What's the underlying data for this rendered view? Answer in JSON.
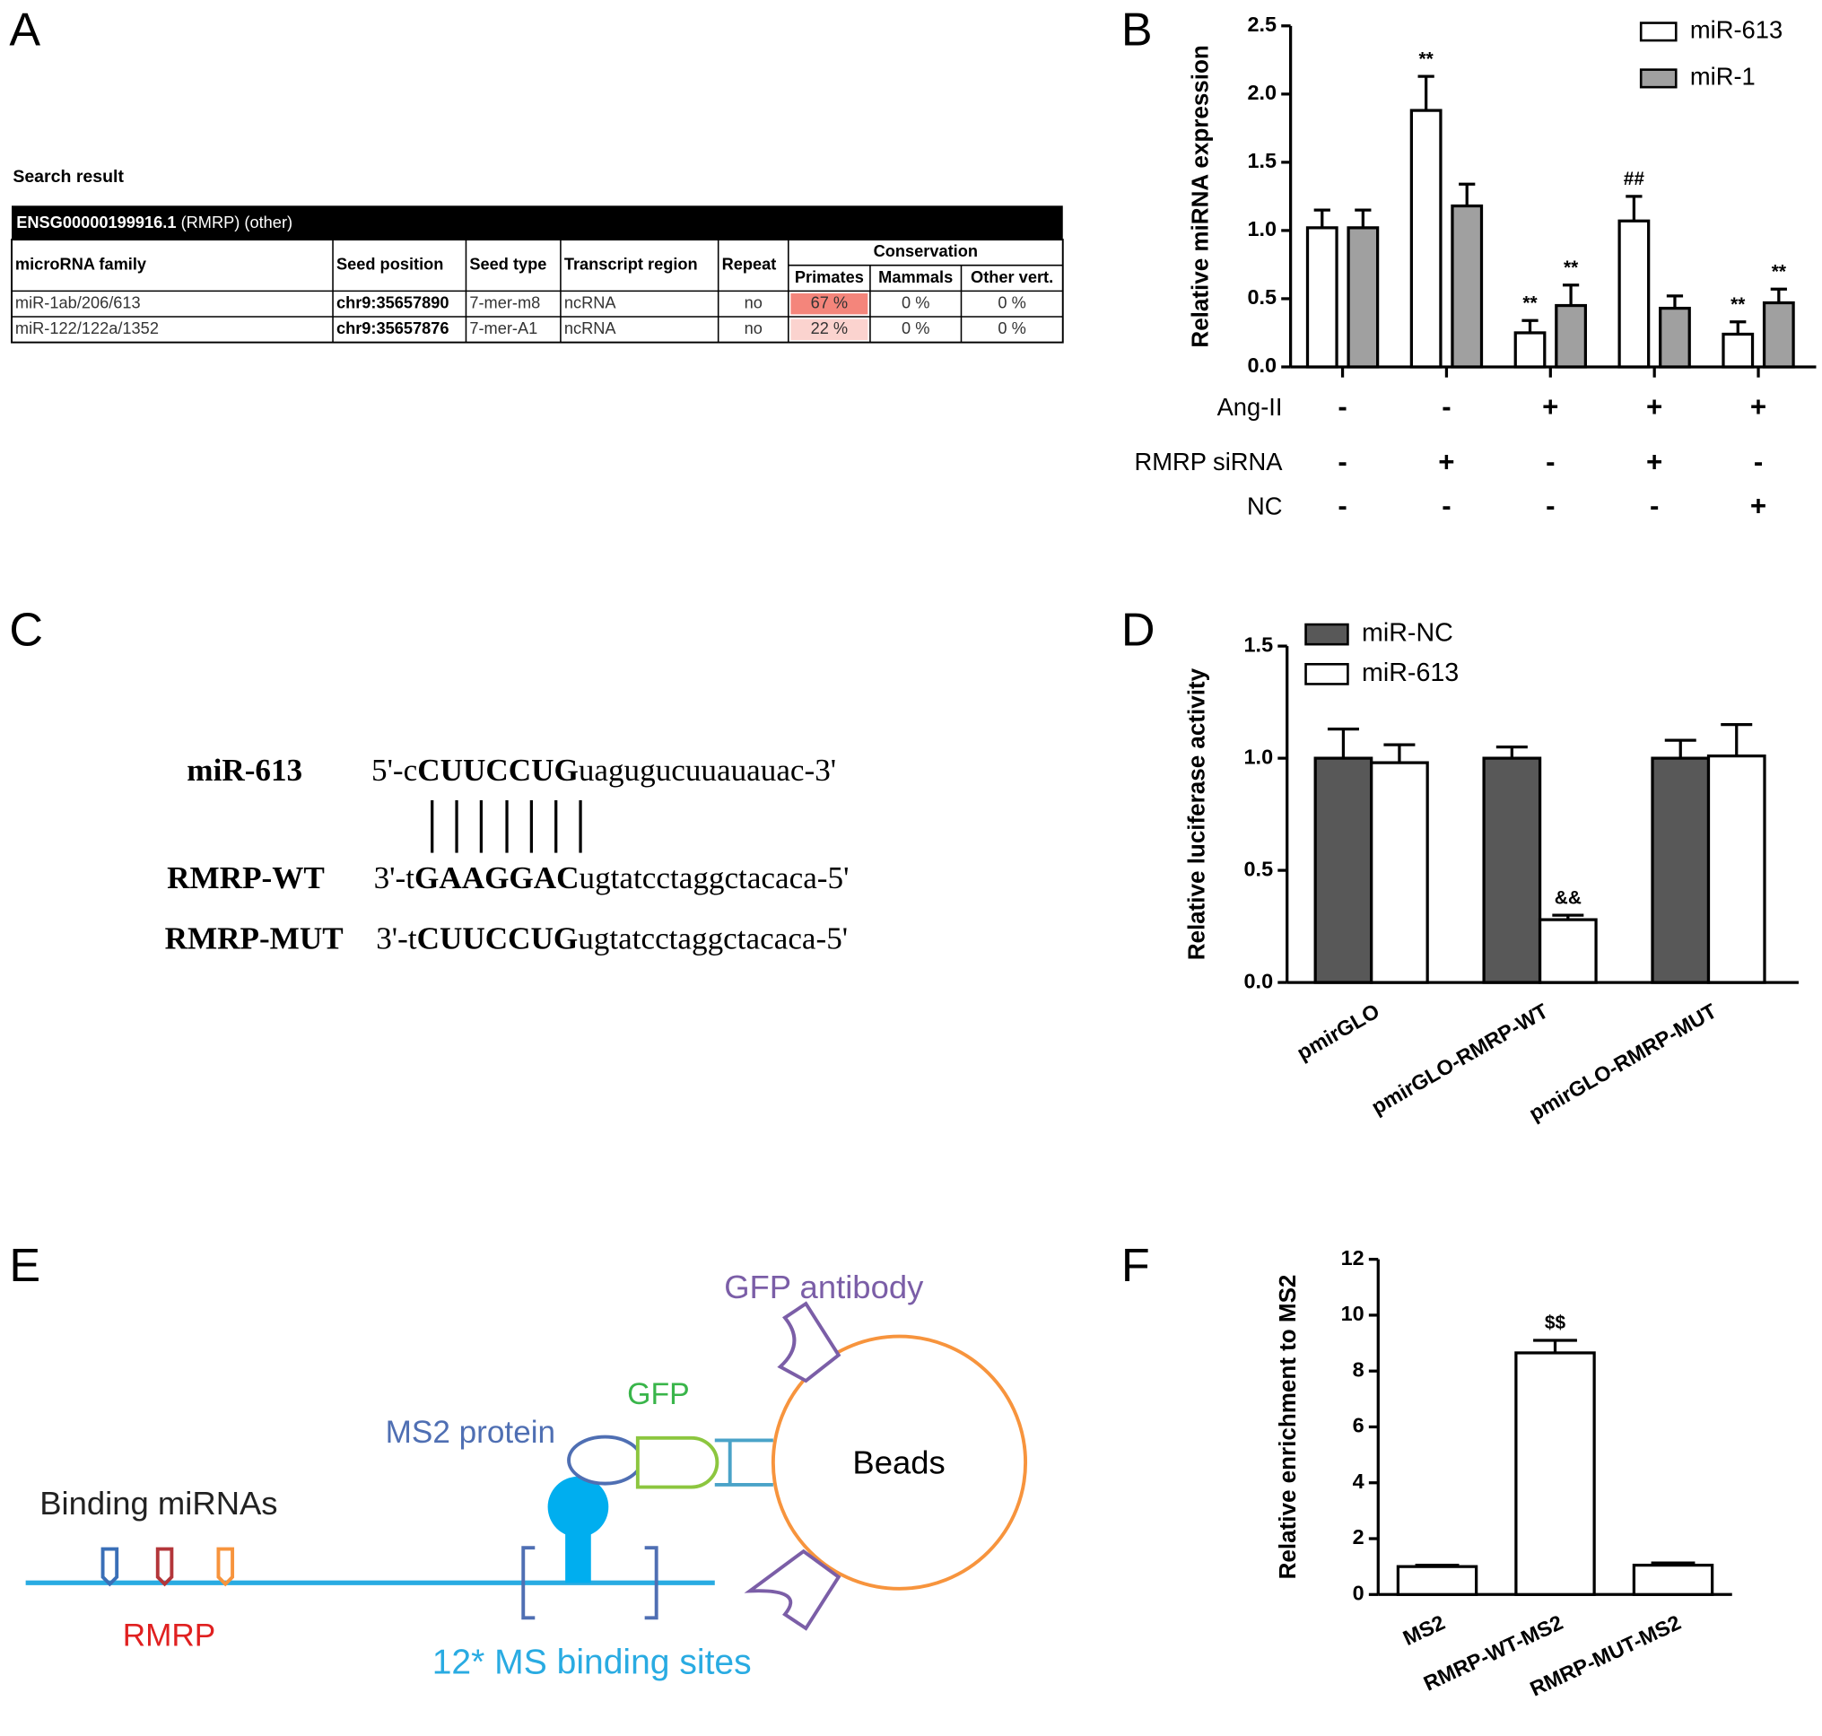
{
  "panels": [
    "A",
    "B",
    "C",
    "D",
    "E",
    "F"
  ],
  "table": {
    "title": "Search result",
    "header": {
      "id": "ENSG00000199916.1",
      "note": "(RMRP) (other)"
    },
    "columns": [
      "microRNA family",
      "Seed position",
      "Seed type",
      "Transcript region",
      "Repeat"
    ],
    "group": "Conservation",
    "subcolumns": [
      "Primates",
      "Mammals",
      "Other vert."
    ],
    "rows": [
      [
        "miR-1ab/206/613",
        "chr9:35657890",
        "7-mer-m8",
        "ncRNA",
        "no",
        "67 %",
        "0 %",
        "0 %"
      ],
      [
        "miR-122/122a/1352",
        "chr9:35657876",
        "7-mer-A1",
        "ncRNA",
        "no",
        "22 %",
        "0 %",
        "0 %"
      ]
    ],
    "primates_colors": [
      "#f4857b",
      "#fbd3cf"
    ]
  },
  "sequences": [
    {
      "name": "miR-613",
      "prefix": "5'-c",
      "seed": "CUUCCUG",
      "suffix": "uagugucuuauauac-3'"
    },
    {
      "name": "RMRP-WT",
      "prefix": "3'-t",
      "seed": "GAAGGAC",
      "suffix": "ugtatcctaggctacaca-5'"
    },
    {
      "name": "RMRP-MUT",
      "prefix": "3'-t",
      "seed": "CUUCCUG",
      "suffix": "ugtatcctaggctacaca-5'"
    }
  ],
  "diagram": {
    "antibody": "GFP antibody",
    "gfp": "GFP",
    "ms2": "MS2 protein",
    "beads": "Beads",
    "mirnas": "Binding miRNAs",
    "rmrp": "RMRP",
    "sites": "12* MS binding sites"
  },
  "chart_data": [
    {
      "type": "bar",
      "ylabel": "Relative miRNA expression",
      "ylim": [
        0,
        2.5
      ],
      "yticks": [
        {
          "value": 0,
          "label": "0.0"
        },
        0.5,
        {
          "value": 1,
          "label": "1.0"
        },
        1.5,
        {
          "value": 2,
          "label": "2.0"
        },
        2.5
      ],
      "legend": "top-right",
      "series": [
        {
          "name": "miR-613",
          "color": "#ffffff",
          "values": [
            1.02,
            1.88,
            0.25,
            1.07,
            0.24
          ],
          "errors": [
            0.13,
            0.25,
            0.09,
            0.18,
            0.09
          ],
          "annotations": [
            null,
            "**",
            "**",
            "##",
            "**"
          ]
        },
        {
          "name": "miR-1",
          "color": "#a0a0a0",
          "values": [
            1.02,
            1.18,
            0.45,
            0.43,
            0.47
          ],
          "errors": [
            0.13,
            0.16,
            0.15,
            0.09,
            0.1
          ],
          "annotations": [
            null,
            null,
            "**",
            null,
            "**"
          ]
        }
      ],
      "conditions": [
        {
          "label": "Ang-II",
          "values": [
            "-",
            "-",
            "+",
            "+",
            "+"
          ]
        },
        {
          "label": "RMRP siRNA",
          "values": [
            "-",
            "+",
            "-",
            "+",
            "-"
          ]
        },
        {
          "label": "NC",
          "values": [
            "-",
            "-",
            "-",
            "-",
            "+"
          ]
        }
      ]
    },
    {
      "type": "bar",
      "ylabel": "Relative luciferase activity",
      "categories": [
        "pmirGLO",
        "pmirGLO-RMRP-WT",
        "pmirGLO-RMRP-MUT"
      ],
      "ylim": [
        0,
        1.5
      ],
      "yticks": [
        {
          "value": 0,
          "label": "0.0"
        },
        0.5,
        {
          "value": 1,
          "label": "1.0"
        },
        1.5
      ],
      "legend": "top-left",
      "series": [
        {
          "name": "miR-NC",
          "color": "#585858",
          "values": [
            1.0,
            1.0,
            1.0
          ],
          "errors": [
            0.13,
            0.05,
            0.08
          ],
          "annotations": [
            null,
            null,
            null
          ]
        },
        {
          "name": "miR-613",
          "color": "#ffffff",
          "values": [
            0.98,
            0.28,
            1.01
          ],
          "errors": [
            0.08,
            0.02,
            0.14
          ],
          "annotations": [
            null,
            "&&",
            null
          ]
        }
      ]
    },
    {
      "type": "bar",
      "ylabel": "Relative enrichment to MS2",
      "categories": [
        "MS2",
        "RMRP-WT-MS2",
        "RMRP-MUT-MS2"
      ],
      "ylim": [
        0,
        12
      ],
      "yticks": [
        0,
        2,
        4,
        6,
        8,
        10,
        12
      ],
      "series": [
        {
          "color": "#ffffff",
          "values": [
            1.0,
            8.65,
            1.05
          ],
          "errors": [
            0.05,
            0.45,
            0.08
          ],
          "annotations": [
            null,
            "$$",
            null
          ]
        }
      ]
    }
  ]
}
